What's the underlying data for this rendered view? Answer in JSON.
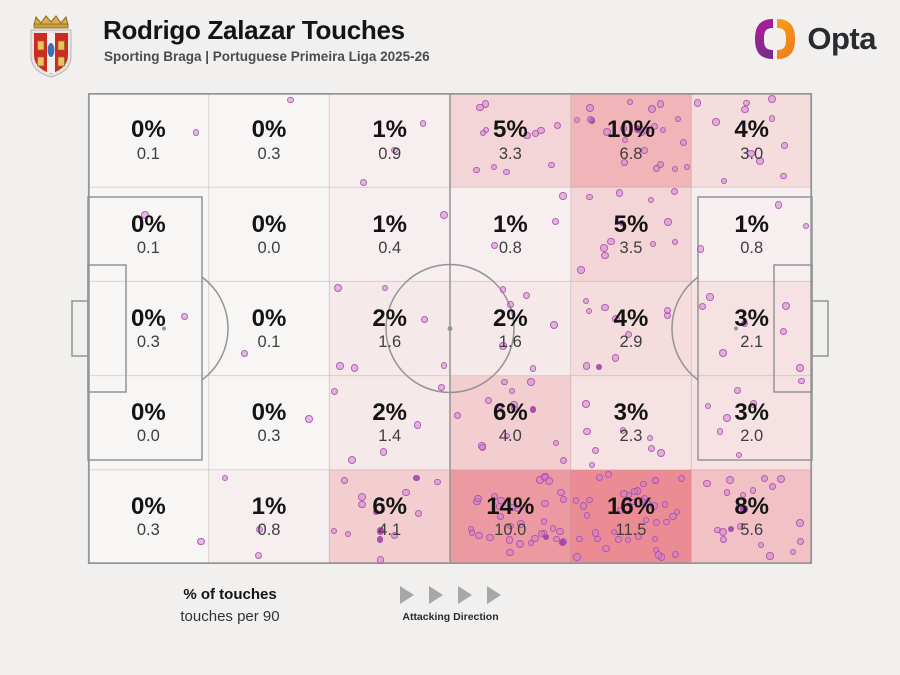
{
  "header": {
    "title": "Rodrigo Zalazar Touches",
    "subtitle": "Sporting Braga | Portuguese Primeira Liga 2025-26"
  },
  "brand": {
    "name": "Opta"
  },
  "legend": {
    "pct_label": "% of touches",
    "per90_label": "touches per 90",
    "direction_label": "Attacking Direction"
  },
  "chart_data": {
    "type": "heatmap",
    "title": "Rodrigo Zalazar Touches",
    "subtitle": "Sporting Braga | Portuguese Primeira Liga 2025-26",
    "grid": {
      "rows": 5,
      "cols": 6,
      "attacking_direction": "left-to-right"
    },
    "value_semantics": {
      "primary": "% of touches",
      "secondary": "touches per 90"
    },
    "cells": [
      [
        {
          "pct": 0,
          "pct_label": "0%",
          "per90": 0.1,
          "per90_label": "0.1"
        },
        {
          "pct": 0,
          "pct_label": "0%",
          "per90": 0.3,
          "per90_label": "0.3"
        },
        {
          "pct": 1,
          "pct_label": "1%",
          "per90": 0.9,
          "per90_label": "0.9"
        },
        {
          "pct": 5,
          "pct_label": "5%",
          "per90": 3.3,
          "per90_label": "3.3"
        },
        {
          "pct": 10,
          "pct_label": "10%",
          "per90": 6.8,
          "per90_label": "6.8"
        },
        {
          "pct": 4,
          "pct_label": "4%",
          "per90": 3.0,
          "per90_label": "3.0"
        }
      ],
      [
        {
          "pct": 0,
          "pct_label": "0%",
          "per90": 0.1,
          "per90_label": "0.1"
        },
        {
          "pct": 0,
          "pct_label": "0%",
          "per90": 0.0,
          "per90_label": "0.0"
        },
        {
          "pct": 1,
          "pct_label": "1%",
          "per90": 0.4,
          "per90_label": "0.4"
        },
        {
          "pct": 1,
          "pct_label": "1%",
          "per90": 0.8,
          "per90_label": "0.8"
        },
        {
          "pct": 5,
          "pct_label": "5%",
          "per90": 3.5,
          "per90_label": "3.5"
        },
        {
          "pct": 1,
          "pct_label": "1%",
          "per90": 0.8,
          "per90_label": "0.8"
        }
      ],
      [
        {
          "pct": 0,
          "pct_label": "0%",
          "per90": 0.3,
          "per90_label": "0.3"
        },
        {
          "pct": 0,
          "pct_label": "0%",
          "per90": 0.1,
          "per90_label": "0.1"
        },
        {
          "pct": 2,
          "pct_label": "2%",
          "per90": 1.6,
          "per90_label": "1.6"
        },
        {
          "pct": 2,
          "pct_label": "2%",
          "per90": 1.6,
          "per90_label": "1.6"
        },
        {
          "pct": 4,
          "pct_label": "4%",
          "per90": 2.9,
          "per90_label": "2.9"
        },
        {
          "pct": 3,
          "pct_label": "3%",
          "per90": 2.1,
          "per90_label": "2.1"
        }
      ],
      [
        {
          "pct": 0,
          "pct_label": "0%",
          "per90": 0.0,
          "per90_label": "0.0"
        },
        {
          "pct": 0,
          "pct_label": "0%",
          "per90": 0.3,
          "per90_label": "0.3"
        },
        {
          "pct": 2,
          "pct_label": "2%",
          "per90": 1.4,
          "per90_label": "1.4"
        },
        {
          "pct": 6,
          "pct_label": "6%",
          "per90": 4.0,
          "per90_label": "4.0"
        },
        {
          "pct": 3,
          "pct_label": "3%",
          "per90": 2.3,
          "per90_label": "2.3"
        },
        {
          "pct": 3,
          "pct_label": "3%",
          "per90": 2.0,
          "per90_label": "2.0"
        }
      ],
      [
        {
          "pct": 0,
          "pct_label": "0%",
          "per90": 0.3,
          "per90_label": "0.3"
        },
        {
          "pct": 1,
          "pct_label": "1%",
          "per90": 0.8,
          "per90_label": "0.8"
        },
        {
          "pct": 6,
          "pct_label": "6%",
          "per90": 4.1,
          "per90_label": "4.1"
        },
        {
          "pct": 14,
          "pct_label": "14%",
          "per90": 10.0,
          "per90_label": "10.0"
        },
        {
          "pct": 16,
          "pct_label": "16%",
          "per90": 11.5,
          "per90_label": "11.5"
        },
        {
          "pct": 8,
          "pct_label": "8%",
          "per90": 5.6,
          "per90_label": "5.6"
        }
      ]
    ],
    "colors": {
      "heat_low": "#f8f6f5",
      "heat_high": "#eb8c95",
      "heat_max_pct": 16,
      "dot_fill": "rgba(206,126,206,0.5)",
      "dot_ring": "rgba(168,77,172,0.8)",
      "pitch_line": "#949494",
      "grid_line": "rgba(146,136,130,0.30)",
      "page_bg": "#f1f0ef"
    }
  }
}
